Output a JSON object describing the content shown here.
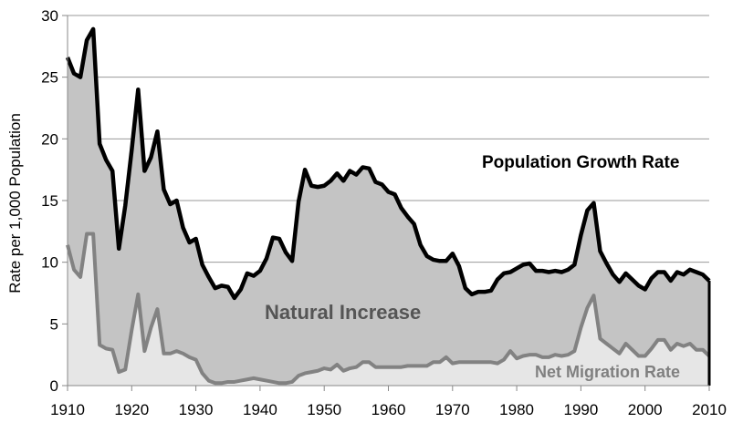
{
  "chart_data": {
    "type": "area",
    "title": "",
    "xlabel": "",
    "ylabel": "Rate per 1,000 Population",
    "xlim": [
      1910,
      2010
    ],
    "ylim": [
      0,
      30
    ],
    "xticks": [
      1910,
      1920,
      1930,
      1940,
      1950,
      1960,
      1970,
      1980,
      1990,
      2000,
      2010
    ],
    "yticks": [
      0,
      5,
      10,
      15,
      20,
      25,
      30
    ],
    "grid": "horizontal",
    "legend": "none",
    "annotations": [
      {
        "text": "Population Growth Rate",
        "series": "growth"
      },
      {
        "text": "Natural Increase",
        "series": "natural"
      },
      {
        "text": "Net Migration Rate",
        "series": "migration"
      }
    ],
    "colors": {
      "growth_line": "#000000",
      "growth_fill": "#c4c4c4",
      "migration_line": "#828282",
      "migration_fill": "#e6e6e6",
      "grid": "#9a9a9a"
    },
    "x": [
      1910,
      1911,
      1912,
      1913,
      1914,
      1915,
      1916,
      1917,
      1918,
      1919,
      1920,
      1921,
      1922,
      1923,
      1924,
      1925,
      1926,
      1927,
      1928,
      1929,
      1930,
      1931,
      1932,
      1933,
      1934,
      1935,
      1936,
      1937,
      1938,
      1939,
      1940,
      1941,
      1942,
      1943,
      1944,
      1945,
      1946,
      1947,
      1948,
      1949,
      1950,
      1951,
      1952,
      1953,
      1954,
      1955,
      1956,
      1957,
      1958,
      1959,
      1960,
      1961,
      1962,
      1963,
      1964,
      1965,
      1966,
      1967,
      1968,
      1969,
      1970,
      1971,
      1972,
      1973,
      1974,
      1975,
      1976,
      1977,
      1978,
      1979,
      1980,
      1981,
      1982,
      1983,
      1984,
      1985,
      1986,
      1987,
      1988,
      1989,
      1990,
      1991,
      1992,
      1993,
      1994,
      1995,
      1996,
      1997,
      1998,
      1999,
      2000,
      2001,
      2002,
      2003,
      2004,
      2005,
      2006,
      2007,
      2008,
      2009,
      2010
    ],
    "series": [
      {
        "key": "growth",
        "values": [
          26.6,
          25.3,
          25.0,
          28.0,
          28.9,
          19.6,
          18.3,
          17.4,
          11.1,
          14.6,
          19.1,
          24.0,
          17.4,
          18.5,
          20.6,
          15.9,
          14.7,
          15.0,
          12.8,
          11.6,
          11.9,
          9.8,
          8.8,
          7.9,
          8.1,
          8.0,
          7.1,
          7.8,
          9.1,
          8.9,
          9.3,
          10.3,
          12.0,
          11.9,
          10.8,
          10.1,
          14.9,
          17.5,
          16.2,
          16.1,
          16.2,
          16.6,
          17.2,
          16.6,
          17.4,
          17.1,
          17.7,
          17.6,
          16.5,
          16.3,
          15.7,
          15.5,
          14.4,
          13.7,
          13.1,
          11.4,
          10.5,
          10.2,
          10.1,
          10.1,
          10.7,
          9.7,
          7.9,
          7.4,
          7.6,
          7.6,
          7.7,
          8.6,
          9.1,
          9.2,
          9.5,
          9.8,
          9.9,
          9.3,
          9.3,
          9.2,
          9.3,
          9.2,
          9.4,
          9.8,
          12.2,
          14.2,
          14.8,
          10.9,
          9.9,
          9.0,
          8.4,
          9.1,
          8.6,
          8.1,
          7.8,
          8.7,
          9.2,
          9.2,
          8.5,
          9.2,
          9.0,
          9.4,
          9.2,
          9.0,
          8.5
        ]
      },
      {
        "key": "migration",
        "values": [
          11.4,
          9.4,
          8.8,
          12.3,
          12.3,
          3.3,
          3.0,
          2.9,
          1.1,
          1.3,
          4.5,
          7.4,
          2.8,
          4.7,
          6.2,
          2.6,
          2.6,
          2.8,
          2.6,
          2.3,
          2.1,
          1.0,
          0.4,
          0.2,
          0.2,
          0.3,
          0.3,
          0.4,
          0.5,
          0.6,
          0.5,
          0.4,
          0.3,
          0.2,
          0.2,
          0.3,
          0.8,
          1.0,
          1.1,
          1.2,
          1.4,
          1.3,
          1.7,
          1.2,
          1.4,
          1.5,
          1.9,
          1.9,
          1.5,
          1.5,
          1.5,
          1.5,
          1.5,
          1.6,
          1.6,
          1.6,
          1.6,
          1.9,
          1.9,
          2.3,
          1.8,
          1.9,
          1.9,
          1.9,
          1.9,
          1.9,
          1.9,
          1.8,
          2.1,
          2.8,
          2.2,
          2.4,
          2.5,
          2.5,
          2.3,
          2.3,
          2.5,
          2.4,
          2.5,
          2.8,
          4.7,
          6.3,
          7.3,
          3.8,
          3.4,
          3.0,
          2.6,
          3.4,
          2.9,
          2.4,
          2.4,
          3.0,
          3.7,
          3.7,
          2.9,
          3.4,
          3.2,
          3.4,
          2.9,
          2.9,
          2.4
        ]
      }
    ]
  }
}
